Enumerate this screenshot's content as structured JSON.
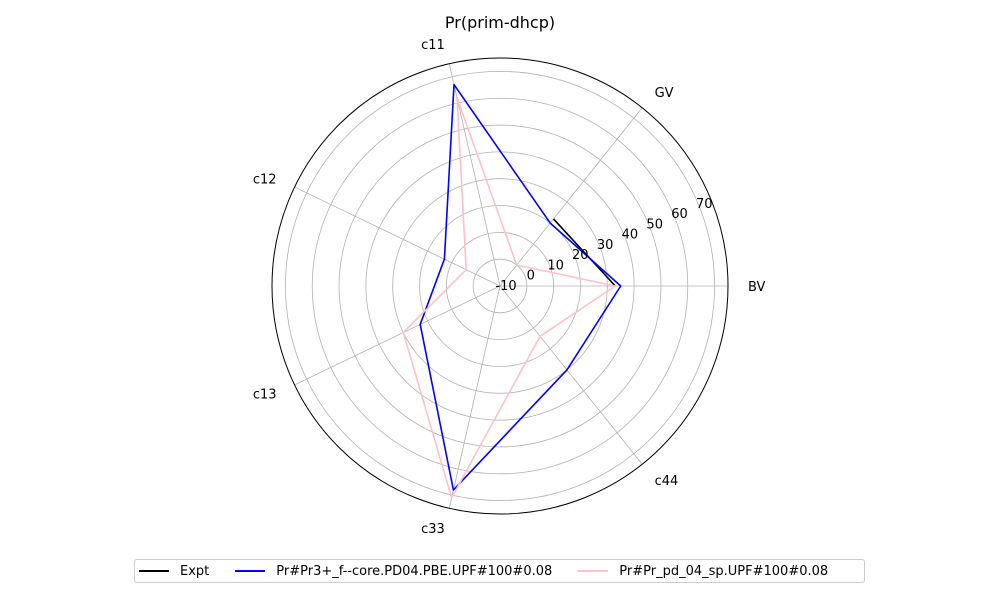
{
  "chart_data": {
    "type": "radar",
    "title": "Pr(prim-dhcp)",
    "categories": [
      "BV",
      "GV",
      "c11",
      "c12",
      "c13",
      "c33",
      "c44"
    ],
    "r_ticks": [
      "-10",
      "0",
      "10",
      "20",
      "30",
      "40",
      "50",
      "60",
      "70"
    ],
    "rlim": [
      -10,
      75
    ],
    "grid": true,
    "legend_position": "bottom-center",
    "series": [
      {
        "name": "Expt",
        "color": "#000000",
        "values": [
          33,
          22,
          null,
          null,
          null,
          null,
          null
        ]
      },
      {
        "name": "Pr#Pr3+_f--core.PD04.PBE.UPF#100#0.08",
        "color": "#0000ff",
        "values": [
          35,
          20,
          67,
          13,
          23,
          68,
          30
        ]
      },
      {
        "name": "Pr#Pr_pd_04_sp.UPF#100#0.08",
        "color": "#ffc0cb",
        "values": [
          33,
          0,
          62,
          4,
          30,
          71,
          14
        ]
      }
    ]
  }
}
